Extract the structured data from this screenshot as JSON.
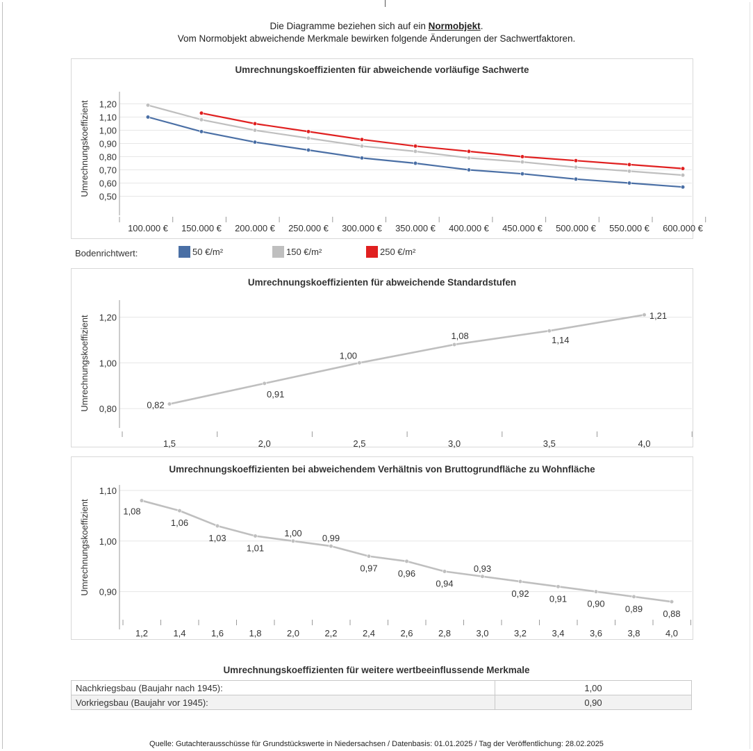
{
  "intro": {
    "line1_before": "Die Diagramme beziehen sich auf ein ",
    "line1_bold": "Normobjekt",
    "line1_after": ".",
    "line2": "Vom Normobjekt abweichende Merkmale bewirken folgende Änderungen der Sachwertfaktoren."
  },
  "colors": {
    "blue": "#4a6fa5",
    "gray": "#bfbfbf",
    "red": "#e02020",
    "grid": "#e6e6e6",
    "axis": "#999999"
  },
  "legend": {
    "label": "Bodenrichtwert:",
    "items": [
      {
        "label": "50 €/m²",
        "color": "#4a6fa5"
      },
      {
        "label": "150 €/m²",
        "color": "#bfbfbf"
      },
      {
        "label": "250 €/m²",
        "color": "#e02020"
      }
    ]
  },
  "table": {
    "title": "Umrechnungskoeffizienten für weitere wertbeeinflussende Merkmale",
    "rows": [
      {
        "label": "Nachkriegsbau (Baujahr nach 1945):",
        "value": "1,00"
      },
      {
        "label": "Vorkriegsbau (Baujahr vor 1945):",
        "value": "0,90"
      }
    ]
  },
  "footer": "Quelle: Gutachterausschüsse für Grundstückswerte in Niedersachsen / Datenbasis: 01.01.2025 / Tag der Veröffentlichung: 28.02.2025",
  "chart_data": [
    {
      "type": "line",
      "title": "Umrechnungskoeffizienten für abweichende vorläufige Sachwerte",
      "ylabel": "Umrechnungskoeffizient",
      "xlabel": "",
      "ylim": [
        0.45,
        1.25
      ],
      "y_ticks": [
        "0,50",
        "0,60",
        "0,70",
        "0,80",
        "0,90",
        "1,00",
        "1,10",
        "1,20"
      ],
      "y_tick_values": [
        0.5,
        0.6,
        0.7,
        0.8,
        0.9,
        1.0,
        1.1,
        1.2
      ],
      "x_tick_labels": [
        "100.000 €",
        "150.000 €",
        "200.000 €",
        "250.000 €",
        "300.000 €",
        "350.000 €",
        "400.000 €",
        "450.000 €",
        "500.000 €",
        "550.000 €",
        "600.000 €"
      ],
      "grid": true,
      "legend": "bottom-left",
      "series": [
        {
          "name": "50 €/m²",
          "color": "#4a6fa5",
          "x": [
            100000,
            150000,
            200000,
            250000,
            300000,
            350000,
            400000,
            450000,
            500000,
            550000,
            600000
          ],
          "y": [
            1.1,
            0.99,
            0.91,
            0.85,
            0.79,
            0.75,
            0.7,
            0.67,
            0.63,
            0.6,
            0.57
          ]
        },
        {
          "name": "150 €/m²",
          "color": "#bfbfbf",
          "x": [
            100000,
            150000,
            200000,
            250000,
            300000,
            350000,
            400000,
            450000,
            500000,
            550000,
            600000
          ],
          "y": [
            1.19,
            1.08,
            1.0,
            0.94,
            0.88,
            0.84,
            0.79,
            0.76,
            0.72,
            0.69,
            0.66
          ]
        },
        {
          "name": "250 €/m²",
          "color": "#e02020",
          "x": [
            150000,
            200000,
            250000,
            300000,
            350000,
            400000,
            450000,
            500000,
            550000,
            600000
          ],
          "y": [
            1.13,
            1.05,
            0.99,
            0.93,
            0.88,
            0.84,
            0.8,
            0.77,
            0.74,
            0.71
          ]
        }
      ]
    },
    {
      "type": "line",
      "title": "Umrechnungskoeffizienten für abweichende Standardstufen",
      "ylabel": "Umrechnungskoeffizient",
      "xlabel": "",
      "ylim": [
        0.77,
        1.25
      ],
      "y_ticks": [
        "0,80",
        "1,00",
        "1,20"
      ],
      "y_tick_values": [
        0.8,
        1.0,
        1.2
      ],
      "x_tick_labels": [
        "1,5",
        "2,0",
        "2,5",
        "3,0",
        "3,5",
        "4,0"
      ],
      "grid": true,
      "series": [
        {
          "color": "#bfbfbf",
          "x": [
            1.5,
            2.0,
            2.5,
            3.0,
            3.5,
            4.0
          ],
          "y": [
            0.82,
            0.91,
            1.0,
            1.08,
            1.14,
            1.21
          ],
          "labels": [
            "0,82",
            "0,91",
            "1,00",
            "1,08",
            "1,14",
            "1,21"
          ]
        }
      ]
    },
    {
      "type": "line",
      "title": "Umrechnungskoeffizienten bei abweichendem Verhältnis von Bruttogrundfläche zu Wohnfläche",
      "ylabel": "Umrechnungskoeffizient",
      "xlabel": "",
      "ylim": [
        0.85,
        1.1
      ],
      "y_ticks": [
        "0,90",
        "1,00",
        "1,10"
      ],
      "y_tick_values": [
        0.9,
        1.0,
        1.1
      ],
      "x_tick_labels": [
        "1,2",
        "1,4",
        "1,6",
        "1,8",
        "2,0",
        "2,2",
        "2,4",
        "2,6",
        "2,8",
        "3,0",
        "3,2",
        "3,4",
        "3,6",
        "3,8",
        "4,0"
      ],
      "grid": true,
      "series": [
        {
          "color": "#bfbfbf",
          "x": [
            1.2,
            1.4,
            1.6,
            1.8,
            2.0,
            2.2,
            2.4,
            2.6,
            2.8,
            3.0,
            3.2,
            3.4,
            3.6,
            3.8,
            4.0
          ],
          "y": [
            1.08,
            1.06,
            1.03,
            1.01,
            1.0,
            0.99,
            0.97,
            0.96,
            0.94,
            0.93,
            0.92,
            0.91,
            0.9,
            0.89,
            0.88
          ],
          "labels": [
            "1,08",
            "1,06",
            "1,03",
            "1,01",
            "1,00",
            "0,99",
            "0,97",
            "0,96",
            "0,94",
            "0,93",
            "0,92",
            "0,91",
            "0,90",
            "0,89",
            "0,88"
          ]
        }
      ]
    }
  ]
}
